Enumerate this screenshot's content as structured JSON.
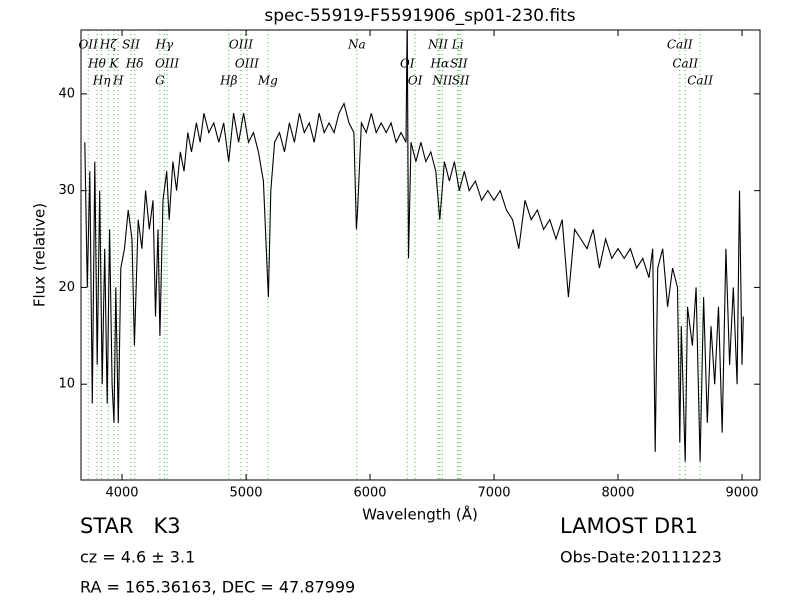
{
  "chart_data": {
    "type": "line",
    "title": "spec-55919-F5591906_sp01-230.fits",
    "x_label": "Wavelength (Å)",
    "y_label": "Flux (relative)",
    "color": "#000000",
    "annotation_color": "#44bb44",
    "xlim": [
      3669,
      9145
    ],
    "ylim": [
      0.1,
      46.6
    ],
    "xticks": [
      4000,
      5000,
      6000,
      7000,
      8000,
      9000
    ],
    "yticks": [
      10,
      20,
      30,
      40
    ],
    "grid": false,
    "x": [
      3700,
      3720,
      3740,
      3760,
      3780,
      3800,
      3820,
      3840,
      3860,
      3880,
      3900,
      3920,
      3935,
      3950,
      3970,
      3990,
      4020,
      4050,
      4080,
      4100,
      4130,
      4160,
      4190,
      4220,
      4250,
      4270,
      4290,
      4305,
      4330,
      4360,
      4380,
      4410,
      4440,
      4470,
      4500,
      4530,
      4560,
      4600,
      4630,
      4660,
      4700,
      4740,
      4780,
      4820,
      4860,
      4900,
      4940,
      4980,
      5020,
      5060,
      5100,
      5140,
      5170,
      5180,
      5200,
      5230,
      5270,
      5310,
      5350,
      5390,
      5430,
      5470,
      5510,
      5550,
      5590,
      5630,
      5670,
      5710,
      5750,
      5790,
      5830,
      5870,
      5890,
      5900,
      5930,
      5970,
      6010,
      6050,
      6090,
      6130,
      6170,
      6210,
      6250,
      6290,
      6300,
      6310,
      6330,
      6370,
      6410,
      6450,
      6490,
      6530,
      6563,
      6600,
      6640,
      6680,
      6720,
      6760,
      6800,
      6850,
      6900,
      6950,
      7000,
      7050,
      7100,
      7150,
      7200,
      7250,
      7300,
      7350,
      7400,
      7450,
      7500,
      7550,
      7600,
      7650,
      7700,
      7750,
      7800,
      7850,
      7900,
      7950,
      8000,
      8050,
      8100,
      8150,
      8200,
      8250,
      8280,
      8300,
      8320,
      8360,
      8400,
      8440,
      8480,
      8498,
      8510,
      8542,
      8560,
      8600,
      8630,
      8662,
      8690,
      8720,
      8750,
      8780,
      8810,
      8840,
      8870,
      8900,
      8930,
      8960,
      8980,
      9000,
      9010
    ],
    "values": [
      35,
      20,
      32,
      8,
      33,
      12,
      30,
      10,
      24,
      8,
      26,
      10,
      6,
      20,
      6,
      22,
      24,
      28,
      25,
      14,
      27,
      24,
      30,
      26,
      29,
      17,
      26,
      15,
      29,
      32,
      27,
      33,
      30,
      34,
      32,
      36,
      34,
      37,
      35,
      38,
      36,
      37,
      35,
      37,
      33,
      38,
      35,
      38,
      35,
      36,
      34,
      31,
      22,
      19,
      30,
      35,
      36,
      34,
      37,
      35,
      38,
      36,
      37,
      35,
      38,
      36,
      37,
      36,
      38,
      39,
      37,
      36,
      26,
      28,
      37,
      36,
      38,
      36,
      37,
      36,
      37,
      35,
      36,
      35,
      48,
      23,
      35,
      33,
      35,
      33,
      34,
      32,
      27,
      33,
      31,
      33,
      30,
      32,
      30,
      31,
      29,
      30,
      29,
      30,
      28,
      27,
      24,
      29,
      27,
      28,
      26,
      27,
      25,
      27,
      19,
      26,
      25,
      24,
      26,
      22,
      25,
      23,
      24,
      23,
      24,
      22,
      23,
      21,
      24,
      3,
      22,
      24,
      18,
      22,
      20,
      4,
      16,
      2,
      18,
      14,
      20,
      2,
      19,
      6,
      16,
      10,
      18,
      5,
      24,
      12,
      20,
      10,
      30,
      12,
      17
    ],
    "annotations": [
      {
        "label": "OII",
        "x": 3727
      },
      {
        "label": "Hθ",
        "x": 3798
      },
      {
        "label": "Hη",
        "x": 3835
      },
      {
        "label": "Hζ",
        "x": 3889
      },
      {
        "label": "K",
        "x": 3934
      },
      {
        "label": "H",
        "x": 3969
      },
      {
        "label": "SII",
        "x": 4072
      },
      {
        "label": "Hδ",
        "x": 4102
      },
      {
        "label": "G",
        "x": 4305
      },
      {
        "label": "Hγ",
        "x": 4341
      },
      {
        "label": "OIII",
        "x": 4363
      },
      {
        "label": "Hβ",
        "x": 4861
      },
      {
        "label": "OIII",
        "x": 4959
      },
      {
        "label": "OIII",
        "x": 5007
      },
      {
        "label": "Mg",
        "x": 5176
      },
      {
        "label": "Na",
        "x": 5894
      },
      {
        "label": "OI",
        "x": 6300
      },
      {
        "label": "OI",
        "x": 6364
      },
      {
        "label": "NII",
        "x": 6548
      },
      {
        "label": "Hα",
        "x": 6563
      },
      {
        "label": "NII",
        "x": 6583
      },
      {
        "label": "Li",
        "x": 6707
      },
      {
        "label": "SII",
        "x": 6716
      },
      {
        "label": "SII",
        "x": 6731
      },
      {
        "label": "CaII",
        "x": 8498
      },
      {
        "label": "CaII",
        "x": 8542
      },
      {
        "label": "CaII",
        "x": 8662
      }
    ],
    "info": {
      "object": "STAR   K3",
      "cz": "cz = 4.6 ± 3.1",
      "coords": "RA = 165.36163, DEC = 47.87999",
      "survey": "LAMOST DR1",
      "date": "Obs-Date:20111223"
    }
  }
}
